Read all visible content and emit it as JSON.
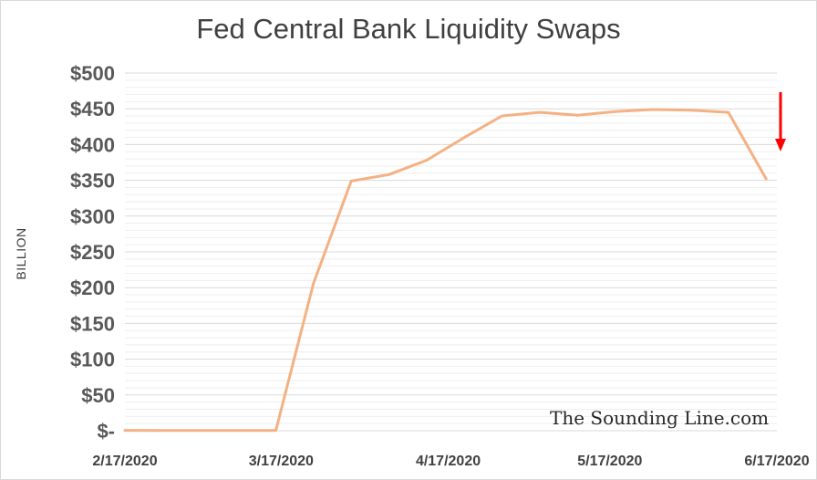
{
  "chart_data": {
    "type": "line",
    "title": "Fed Central Bank Liquidity Swaps",
    "ylabel": "BILLION",
    "xlabel": "",
    "ylim": [
      0,
      500
    ],
    "ytick_values": [
      0,
      50,
      100,
      150,
      200,
      250,
      300,
      350,
      400,
      450,
      500
    ],
    "ytick_labels": [
      "$-",
      "$50",
      "$100",
      "$150",
      "$200",
      "$250",
      "$300",
      "$350",
      "$400",
      "$450",
      "$500"
    ],
    "xtick_labels": [
      "2/17/2020",
      "3/17/2020",
      "4/17/2020",
      "5/17/2020",
      "6/17/2020"
    ],
    "grid": true,
    "series": [
      {
        "color": "#f4b183",
        "points": [
          [
            "2020-02-17",
            0.5
          ],
          [
            "2020-02-24",
            0.2
          ],
          [
            "2020-03-02",
            0.4
          ],
          [
            "2020-03-09",
            0.3
          ],
          [
            "2020-03-16",
            0.2
          ],
          [
            "2020-03-23",
            206
          ],
          [
            "2020-03-30",
            349
          ],
          [
            "2020-04-06",
            358
          ],
          [
            "2020-04-13",
            378
          ],
          [
            "2020-04-20",
            410
          ],
          [
            "2020-04-27",
            440
          ],
          [
            "2020-05-04",
            445
          ],
          [
            "2020-05-11",
            441
          ],
          [
            "2020-05-18",
            446
          ],
          [
            "2020-05-25",
            449
          ],
          [
            "2020-06-01",
            448
          ],
          [
            "2020-06-08",
            445
          ],
          [
            "2020-06-15",
            352
          ]
        ]
      }
    ],
    "annotation": {
      "type": "arrow-down",
      "color": "#ff0000"
    }
  },
  "watermark": "The Sounding Line.com"
}
